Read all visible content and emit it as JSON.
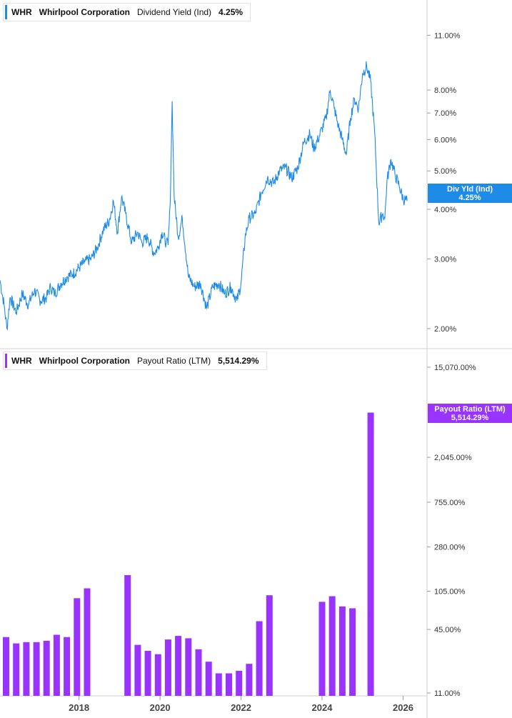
{
  "panels": [
    {
      "ticker": "WHR",
      "company": "Whirlpool Corporation",
      "metric": "Dividend Yield (Ind)",
      "value": "4.25%",
      "tag_label": "Div Yld (Ind)",
      "tag_value": "4.25%",
      "color": "#1f8be8"
    },
    {
      "ticker": "WHR",
      "company": "Whirlpool Corporation",
      "metric": "Payout Ratio (LTM)",
      "value": "5,514.29%",
      "tag_label": "Payout Ratio (LTM)",
      "tag_value": "5,514.29%",
      "color": "#9933ff"
    }
  ],
  "chart_data": [
    {
      "type": "line",
      "title": "WHR  Whirlpool Corporation  Dividend Yield (Ind)",
      "y_scale": "log",
      "y_ticks": [
        "11.00%",
        "8.00%",
        "7.00%",
        "6.00%",
        "5.00%",
        "4.00%",
        "3.00%",
        "2.00%"
      ],
      "y_tick_values": [
        11,
        8,
        7,
        6,
        5,
        4,
        3,
        2
      ],
      "ylim": [
        1.78,
        13.5
      ],
      "x_ticks": [
        "2018",
        "2020",
        "2022",
        "2024",
        "2026"
      ],
      "x_tick_values": [
        2018.0,
        2020.0,
        2022.0,
        2024.0,
        2026.0
      ],
      "xlim": [
        2016.05,
        2026.45
      ],
      "series": [
        {
          "x": [
            2016.05,
            2016.15,
            2016.22,
            2016.3,
            2016.45,
            2016.6,
            2016.75,
            2016.9,
            2017.05,
            2017.2,
            2017.3,
            2017.4,
            2017.55,
            2017.7,
            2017.85,
            2018.0,
            2018.15,
            2018.3,
            2018.45,
            2018.6,
            2018.75,
            2018.85,
            2018.95,
            2019.05,
            2019.15,
            2019.3,
            2019.45,
            2019.55,
            2019.7,
            2019.85,
            2019.95,
            2020.05,
            2020.15,
            2020.2,
            2020.25,
            2020.3,
            2020.35,
            2020.45,
            2020.55,
            2020.7,
            2020.85,
            2021.0,
            2021.15,
            2021.3,
            2021.45,
            2021.6,
            2021.75,
            2021.9,
            2022.0,
            2022.1,
            2022.2,
            2022.35,
            2022.5,
            2022.65,
            2022.8,
            2022.95,
            2023.1,
            2023.25,
            2023.4,
            2023.55,
            2023.7,
            2023.8,
            2023.9,
            2024.0,
            2024.1,
            2024.2,
            2024.3,
            2024.4,
            2024.5,
            2024.6,
            2024.7,
            2024.8,
            2024.9,
            2025.0,
            2025.1,
            2025.2,
            2025.3,
            2025.4,
            2025.5,
            2025.55,
            2025.6,
            2025.7,
            2025.8,
            2025.9,
            2026.0,
            2026.1
          ],
          "y": [
            2.65,
            2.3,
            2.0,
            2.4,
            2.2,
            2.45,
            2.3,
            2.5,
            2.35,
            2.4,
            2.55,
            2.45,
            2.6,
            2.7,
            2.75,
            2.85,
            2.95,
            3.0,
            3.2,
            3.55,
            3.75,
            4.2,
            3.5,
            4.3,
            3.9,
            3.3,
            3.5,
            3.3,
            3.4,
            3.1,
            3.2,
            3.5,
            3.3,
            3.25,
            4.1,
            7.5,
            4.3,
            3.4,
            3.8,
            2.7,
            2.55,
            2.6,
            2.25,
            2.55,
            2.6,
            2.45,
            2.55,
            2.35,
            2.6,
            3.4,
            3.8,
            3.9,
            4.4,
            4.8,
            4.65,
            5.0,
            5.1,
            4.8,
            5.1,
            5.9,
            6.2,
            5.7,
            6.0,
            6.4,
            6.8,
            8.0,
            7.2,
            6.5,
            6.0,
            5.5,
            6.8,
            7.6,
            7.2,
            8.8,
            9.2,
            8.4,
            6.2,
            3.7,
            3.9,
            3.8,
            4.7,
            5.35,
            4.9,
            4.6,
            4.25,
            4.2
          ],
          "color": "#1f8be8"
        }
      ]
    },
    {
      "type": "bar",
      "title": "WHR  Whirlpool Corporation  Payout Ratio (LTM)",
      "y_scale": "log",
      "y_ticks": [
        "15,070.00%",
        "2,045.00%",
        "755.00%",
        "280.00%",
        "105.00%",
        "45.00%",
        "11.00%"
      ],
      "y_tick_values": [
        15070,
        2045,
        755,
        280,
        105,
        45,
        11
      ],
      "ylim": [
        11,
        15070
      ],
      "x_ticks": [
        "2018",
        "2020",
        "2022",
        "2024",
        "2026"
      ],
      "x_tick_values": [
        2018.0,
        2020.0,
        2022.0,
        2024.0,
        2026.0
      ],
      "xlim": [
        2016.05,
        2026.45
      ],
      "x": [
        2016.2,
        2016.45,
        2016.7,
        2016.95,
        2017.2,
        2017.45,
        2017.7,
        2017.95,
        2018.2,
        2019.2,
        2019.45,
        2019.7,
        2019.95,
        2020.2,
        2020.45,
        2020.7,
        2020.95,
        2021.2,
        2021.45,
        2021.7,
        2021.95,
        2022.2,
        2022.45,
        2022.7,
        2024.0,
        2024.25,
        2024.5,
        2024.75,
        2025.2
      ],
      "values": [
        38,
        33,
        34,
        34,
        35,
        40,
        38,
        90,
        112,
        150,
        32,
        28,
        26,
        36,
        39,
        37,
        29,
        22,
        17,
        17,
        18,
        21,
        54,
        96,
        83,
        94,
        75,
        72,
        5514.29
      ],
      "color": "#9933ff"
    }
  ]
}
